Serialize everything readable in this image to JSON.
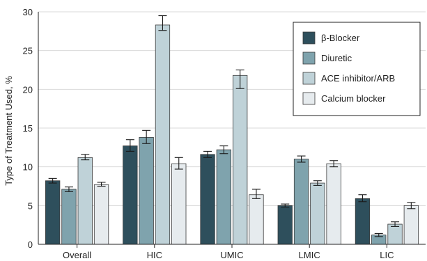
{
  "chart_data": {
    "type": "bar",
    "title": "",
    "xlabel": "",
    "ylabel": "Type of Treatment Used, %",
    "ylim": [
      0,
      30
    ],
    "yticks": [
      0,
      5,
      10,
      15,
      20,
      25,
      30
    ],
    "grid": "horizontal",
    "legend_position": "top-right",
    "categories": [
      "Overall",
      "HIC",
      "UMIC",
      "LMIC",
      "LIC"
    ],
    "series": [
      {
        "name": "β-Blocker",
        "color": "#2e4f5c",
        "values": [
          8.2,
          12.7,
          11.6,
          5.0,
          5.9
        ],
        "err_low": [
          7.9,
          12.0,
          11.2,
          4.8,
          5.5
        ],
        "err_high": [
          8.5,
          13.5,
          12.0,
          5.2,
          6.4
        ]
      },
      {
        "name": "Diuretic",
        "color": "#7fa3ad",
        "values": [
          7.1,
          13.8,
          12.2,
          11.0,
          1.2
        ],
        "err_low": [
          6.8,
          13.0,
          11.7,
          10.6,
          1.0
        ],
        "err_high": [
          7.4,
          14.7,
          12.7,
          11.4,
          1.4
        ]
      },
      {
        "name": "ACE inhibitor/ARB",
        "color": "#bfd2d8",
        "values": [
          11.2,
          28.3,
          21.8,
          7.9,
          2.6
        ],
        "err_low": [
          10.9,
          27.6,
          20.1,
          7.6,
          2.3
        ],
        "err_high": [
          11.6,
          29.5,
          22.5,
          8.2,
          2.9
        ]
      },
      {
        "name": "Calcium blocker",
        "color": "#e6ebee",
        "values": [
          7.7,
          10.4,
          6.4,
          10.4,
          5.0
        ],
        "err_low": [
          7.5,
          9.7,
          5.9,
          10.0,
          4.6
        ],
        "err_high": [
          8.0,
          11.2,
          7.1,
          10.8,
          5.4
        ]
      }
    ]
  }
}
